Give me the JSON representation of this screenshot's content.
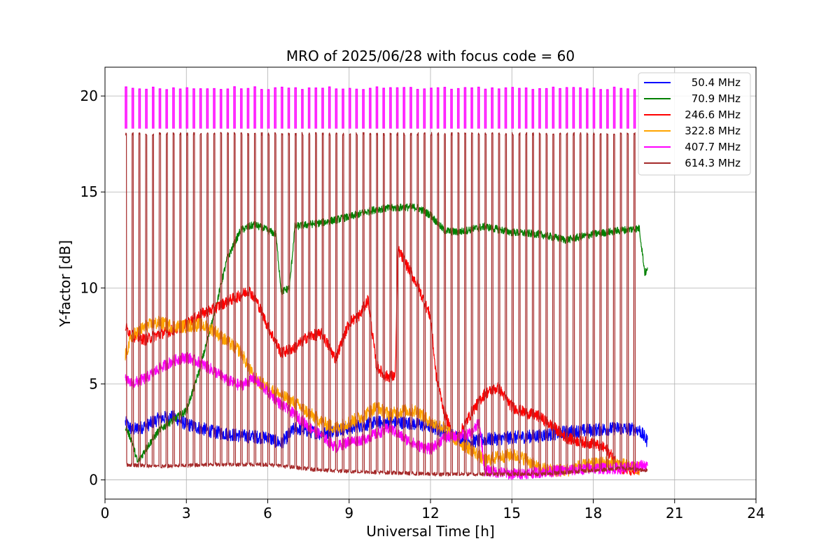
{
  "chart_data": {
    "type": "line",
    "title": "MRO of 2025/06/28 with focus code = 60",
    "xlabel": "Universal Time [h]",
    "ylabel": "Y-factor [dB]",
    "xlim": [
      0,
      24
    ],
    "ylim": [
      -1,
      21.5
    ],
    "xticks": [
      0,
      3,
      6,
      9,
      12,
      15,
      18,
      21,
      24
    ],
    "yticks": [
      0,
      5,
      10,
      15,
      20
    ],
    "grid": true,
    "legend_position": "top-right",
    "spike_band": {
      "start_h": 0.75,
      "end_h": 19.7,
      "period_h": 0.25,
      "width_h": 0.05
    },
    "series": [
      {
        "name": "50.4 MHz",
        "color": "#0000ff",
        "noise": 0.35,
        "x": [
          0.75,
          1.0,
          1.5,
          2.0,
          2.5,
          3.0,
          4.0,
          5.0,
          6.0,
          6.5,
          7.0,
          8.0,
          8.5,
          9.0,
          10.0,
          11.0,
          12.0,
          12.5,
          13.0,
          13.5,
          14.0,
          15.0,
          16.0,
          17.0,
          18.0,
          19.0,
          19.7,
          20.0
        ],
        "values": [
          3.0,
          2.6,
          2.8,
          3.2,
          3.3,
          2.9,
          2.5,
          2.3,
          2.2,
          1.9,
          2.7,
          2.4,
          2.6,
          2.7,
          3.0,
          3.0,
          2.8,
          2.5,
          2.2,
          2.0,
          2.1,
          2.2,
          2.3,
          2.5,
          2.6,
          2.7,
          2.6,
          2.0
        ]
      },
      {
        "name": "70.9 MHz",
        "color": "#008000",
        "noise": 0.2,
        "x": [
          0.75,
          1.0,
          1.2,
          1.5,
          2.0,
          2.5,
          3.0,
          3.5,
          4.0,
          4.5,
          5.0,
          5.5,
          6.0,
          6.3,
          6.5,
          6.8,
          7.0,
          8.0,
          9.0,
          10.0,
          11.0,
          11.5,
          12.0,
          12.5,
          13.0,
          14.0,
          15.0,
          16.0,
          17.0,
          18.0,
          19.0,
          19.7,
          19.9,
          20.0
        ],
        "values": [
          2.8,
          2.0,
          0.9,
          1.6,
          2.6,
          3.1,
          3.6,
          5.8,
          8.5,
          11.5,
          13.0,
          13.3,
          13.0,
          12.8,
          9.8,
          10.0,
          13.2,
          13.4,
          13.7,
          14.1,
          14.2,
          14.2,
          13.8,
          13.0,
          12.9,
          13.2,
          12.9,
          12.8,
          12.5,
          12.8,
          13.0,
          13.1,
          10.8,
          10.9
        ]
      },
      {
        "name": "246.6 MHz",
        "color": "#ff0000",
        "noise": 0.3,
        "x": [
          0.75,
          1.0,
          1.5,
          2.0,
          2.5,
          3.0,
          3.5,
          4.0,
          4.5,
          5.0,
          5.3,
          5.6,
          6.0,
          6.5,
          7.0,
          7.5,
          8.0,
          8.5,
          9.0,
          9.4,
          9.7,
          10.0,
          10.3,
          10.7,
          10.8,
          11.0,
          11.5,
          12.0,
          12.2,
          12.5,
          12.8,
          13.0,
          13.5,
          14.0,
          14.5,
          15.0,
          15.5,
          16.0,
          16.5,
          17.0,
          17.5,
          18.0,
          18.5,
          19.0,
          19.7
        ],
        "values": [
          8.0,
          7.5,
          7.3,
          7.6,
          7.8,
          8.1,
          8.6,
          8.9,
          9.3,
          9.6,
          9.9,
          9.3,
          8.0,
          6.6,
          6.9,
          7.5,
          7.6,
          6.3,
          8.2,
          8.6,
          9.4,
          6.0,
          5.4,
          5.4,
          12.0,
          11.5,
          10.2,
          8.5,
          5.5,
          3.6,
          2.3,
          2.2,
          3.5,
          4.5,
          4.8,
          3.8,
          3.5,
          3.3,
          2.8,
          2.2,
          2.0,
          1.9,
          1.6,
          0.6,
          0.4
        ]
      },
      {
        "name": "322.8 MHz",
        "color": "#ffa500",
        "noise": 0.35,
        "x": [
          0.75,
          1.0,
          1.5,
          2.0,
          2.5,
          3.0,
          3.5,
          4.0,
          4.5,
          5.0,
          5.5,
          6.0,
          6.5,
          7.0,
          7.5,
          8.0,
          8.5,
          9.0,
          9.5,
          10.0,
          10.5,
          11.0,
          11.5,
          12.0,
          12.5,
          13.0,
          13.5,
          14.0,
          14.5,
          15.0,
          15.5,
          16.0,
          16.5,
          17.0,
          17.5,
          18.0,
          18.5,
          19.0,
          19.7
        ],
        "values": [
          6.5,
          7.5,
          8.0,
          8.2,
          8.0,
          8.0,
          8.1,
          7.8,
          7.2,
          6.7,
          5.3,
          4.8,
          4.4,
          4.0,
          3.5,
          3.0,
          2.7,
          3.0,
          3.3,
          3.8,
          3.4,
          3.6,
          3.6,
          3.0,
          2.7,
          2.0,
          1.6,
          1.0,
          1.2,
          1.3,
          1.1,
          0.6,
          0.5,
          0.5,
          0.7,
          0.8,
          0.9,
          0.8,
          0.6
        ]
      },
      {
        "name": "407.7 MHz",
        "color": "#ff00ff",
        "noise": 0.3,
        "x": [
          0.75,
          1.0,
          1.5,
          2.0,
          2.5,
          3.0,
          3.5,
          4.0,
          4.5,
          5.0,
          5.5,
          6.0,
          6.5,
          7.0,
          7.5,
          8.0,
          8.5,
          9.0,
          9.5,
          10.0,
          10.5,
          11.0,
          11.5,
          12.0,
          12.5,
          13.0,
          13.5,
          13.8,
          14.0,
          15.0,
          16.0,
          17.0,
          18.0,
          19.0,
          19.7,
          20.0
        ],
        "values": [
          5.2,
          5.0,
          5.3,
          5.8,
          6.2,
          6.4,
          6.1,
          5.7,
          5.2,
          4.9,
          5.3,
          4.6,
          3.9,
          3.4,
          2.8,
          2.3,
          1.7,
          2.0,
          2.1,
          2.4,
          2.7,
          2.2,
          1.8,
          1.6,
          2.2,
          2.3,
          2.4,
          3.0,
          0.5,
          0.3,
          0.4,
          0.5,
          0.6,
          0.6,
          0.7,
          0.8
        ]
      },
      {
        "name": "614.3 MHz",
        "color": "#a52a2a",
        "noise": 0.1,
        "x": [
          0.75,
          2.0,
          4.0,
          6.0,
          8.0,
          10.0,
          12.0,
          14.0,
          16.0,
          18.0,
          19.0,
          20.0
        ],
        "values": [
          0.8,
          0.7,
          0.8,
          0.8,
          0.5,
          0.4,
          0.3,
          0.3,
          0.3,
          0.5,
          0.6,
          0.5
        ],
        "spike_top": 18.1
      }
    ],
    "spike_overlay": {
      "series": "407.7 MHz",
      "top": 20.4,
      "bottom": 18.3
    }
  }
}
